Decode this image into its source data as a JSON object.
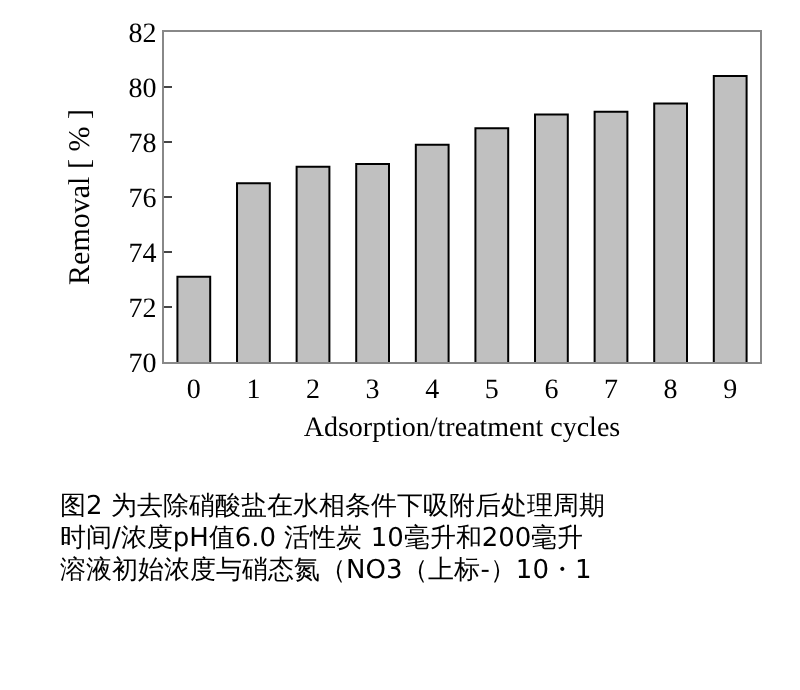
{
  "chart_data": {
    "type": "bar",
    "xlabel": "Adsorption/treatment cycles",
    "ylabel": "Removal [ % ]",
    "categories": [
      "0",
      "1",
      "2",
      "3",
      "4",
      "5",
      "6",
      "7",
      "8",
      "9"
    ],
    "values": [
      73.1,
      76.5,
      77.1,
      77.2,
      77.9,
      78.5,
      79.0,
      79.1,
      79.4,
      80.4
    ],
    "color": "#c0c0c0",
    "ylim": [
      70,
      82
    ],
    "yticks": [
      70,
      72,
      74,
      76,
      78,
      80,
      82
    ],
    "legend": false,
    "annotations": [
      "图2 为去除硝酸盐在水相条件下吸附后处理周期",
      "时间/浓度pH值6.0 活性炭 10毫升和200毫升",
      "溶液初始浓度与硝态氮（NO3（上标-）10・1"
    ]
  }
}
